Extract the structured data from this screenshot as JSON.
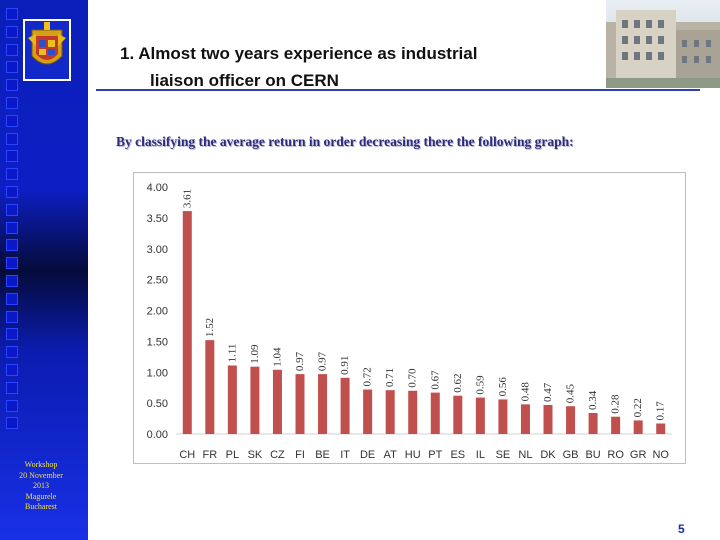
{
  "slide": {
    "title_line1": "1. Almost two years experience as industrial",
    "title_line2": "liaison officer on CERN",
    "subtitle": "By classifying the average return in order decreasing there the following graph:",
    "sidebar_note": "Workshop\n20 November\n2013\nMagurele\nBucharest",
    "page_number": "5"
  },
  "colors": {
    "bar": "#c0504d",
    "sidebar": "#0d1fc4",
    "rule": "#3040b0",
    "note": "#f4e23a"
  },
  "icons": {
    "crest": "romania-coat-of-arms-icon",
    "building": "building-photo"
  },
  "chart_data": {
    "type": "bar",
    "categories": [
      "CH",
      "FR",
      "PL",
      "SK",
      "CZ",
      "FI",
      "BE",
      "IT",
      "DE",
      "AT",
      "HU",
      "PT",
      "ES",
      "IL",
      "SE",
      "NL",
      "DK",
      "GB",
      "BU",
      "RO",
      "GR",
      "NO"
    ],
    "values": [
      3.61,
      1.52,
      1.11,
      1.09,
      1.04,
      0.97,
      0.97,
      0.91,
      0.72,
      0.71,
      0.7,
      0.67,
      0.62,
      0.59,
      0.56,
      0.48,
      0.47,
      0.45,
      0.34,
      0.28,
      0.22,
      0.17
    ],
    "value_labels": [
      "3.61",
      "1.52",
      "1.11",
      "1.09",
      "1.04",
      "0.97",
      "0.97",
      "0.91",
      "0.72",
      "0.71",
      "0.70",
      "0.67",
      "0.62",
      "0.59",
      "0.56",
      "0.48",
      "0.47",
      "0.45",
      "0.34",
      "0.28",
      "0.22",
      "0.17"
    ],
    "y_ticks": [
      "0.00",
      "0.50",
      "1.00",
      "1.50",
      "2.00",
      "2.50",
      "3.00",
      "3.50",
      "4.00"
    ],
    "ylim": [
      0,
      4
    ],
    "grid": false,
    "legend": "none"
  }
}
